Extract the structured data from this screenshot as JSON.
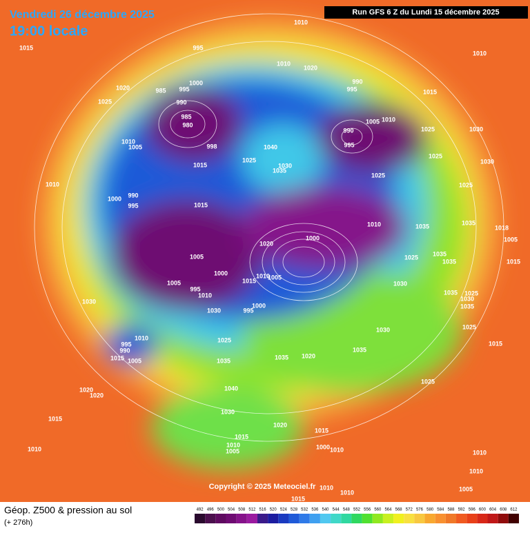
{
  "header": {
    "date": "Vendredi 26 décembre 2025",
    "time": "19:00 locale",
    "run": "Run GFS 6 Z du Lundi 15 décembre 2025"
  },
  "footer": {
    "title": "Géop. Z500 & pression au sol",
    "lead": "(+ 276h)",
    "copyright": "Copyright © 2025 Meteociel.fr"
  },
  "legend": {
    "labels": [
      492,
      496,
      500,
      504,
      508,
      512,
      516,
      520,
      524,
      528,
      532,
      536,
      540,
      544,
      548,
      552,
      556,
      560,
      564,
      568,
      572,
      576,
      580,
      584,
      588,
      592,
      596,
      600,
      604,
      608,
      612
    ],
    "colors": [
      "#2a0a2e",
      "#4b0f4d",
      "#5e0a60",
      "#6e0b72",
      "#85128a",
      "#9a1aa0",
      "#3a1a8a",
      "#1c1ca0",
      "#1a3ac0",
      "#1f5ad8",
      "#2f7ae8",
      "#3fa0f0",
      "#50c8f0",
      "#40d8c8",
      "#30d8a0",
      "#30d860",
      "#50e030",
      "#90e820",
      "#c8f020",
      "#f0f020",
      "#f8e040",
      "#f8c840",
      "#f8a830",
      "#f89030",
      "#f07828",
      "#f05a20",
      "#e84018",
      "#d82818",
      "#c01818",
      "#900c0c",
      "#400000"
    ]
  },
  "isobar_labels": [
    "1015",
    "1010",
    "995",
    "1010",
    "1020",
    "1010",
    "1020",
    "985",
    "995",
    "1000",
    "990",
    "995",
    "1015",
    "1025",
    "990",
    "985",
    "980",
    "1005",
    "1010",
    "990",
    "1025",
    "1030",
    "1010",
    "1005",
    "998",
    "1040",
    "995",
    "1025",
    "1025",
    "1030",
    "1015",
    "1030",
    "1035",
    "1010",
    "990",
    "1000",
    "995",
    "1025",
    "1025",
    "1015",
    "1010",
    "1035",
    "1035",
    "1018",
    "1005",
    "1000",
    "1020",
    "1015",
    "1025",
    "1035",
    "1035",
    "1005",
    "1000",
    "1015",
    "1010",
    "1005",
    "1005",
    "1030",
    "995",
    "1010",
    "1030",
    "1035",
    "1025",
    "1030",
    "995",
    "1000",
    "1030",
    "1035",
    "1030",
    "1025",
    "1010",
    "1025",
    "995",
    "990",
    "1005",
    "1015",
    "1035",
    "1015",
    "1035",
    "1035",
    "1020",
    "1025",
    "1040",
    "1020",
    "1020",
    "1030",
    "1015",
    "1020",
    "1015",
    "1015",
    "1010",
    "1005",
    "1000",
    "1010",
    "1010",
    "1010",
    "1010",
    "1010",
    "1010",
    "1005",
    "1015"
  ]
}
